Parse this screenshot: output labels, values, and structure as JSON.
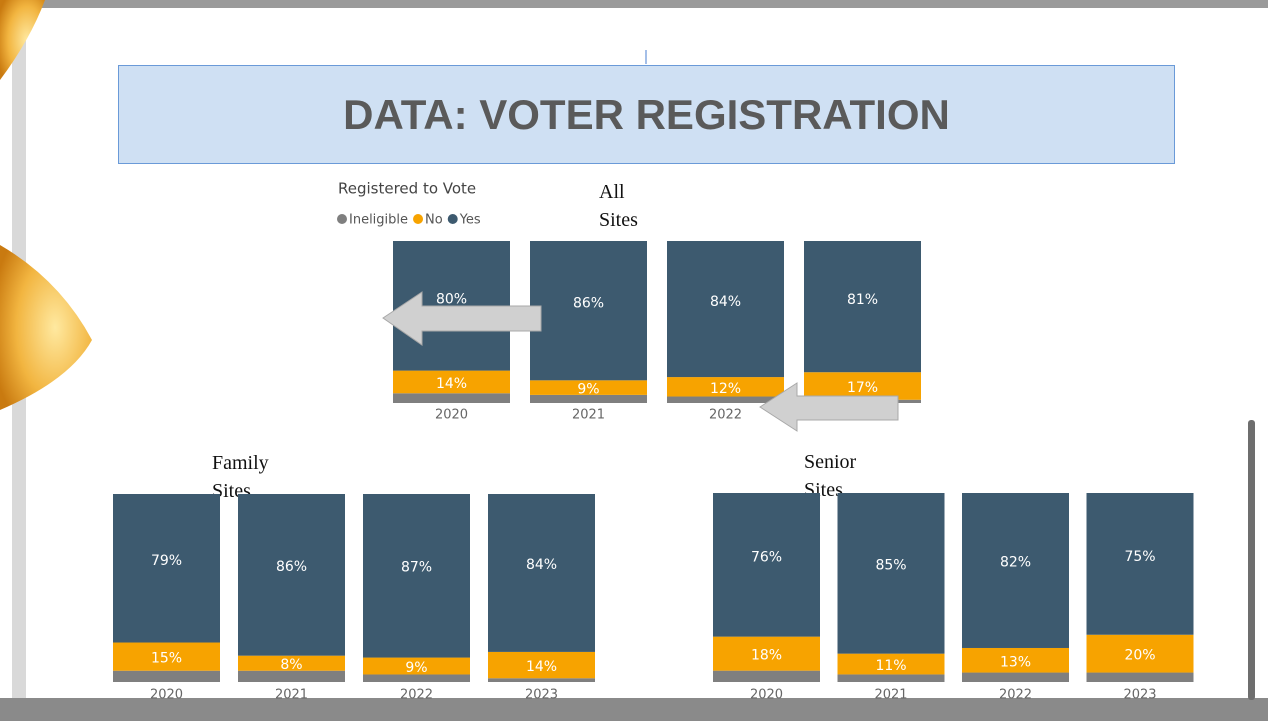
{
  "slide": {
    "title": "DATA: VOTER REGISTRATION"
  },
  "chart_data": [
    {
      "type": "stacked-bar",
      "title": "All Sites",
      "legend_title": "Registered to Vote",
      "categories": [
        "2020",
        "2021",
        "2022",
        null
      ],
      "ylim": [
        0,
        100
      ],
      "series": [
        {
          "name": "Ineligible",
          "color": "#7f7f7f",
          "values": [
            6,
            5,
            4,
            2
          ]
        },
        {
          "name": "No",
          "color": "#f7a300",
          "values": [
            14,
            9,
            12,
            17
          ],
          "value_labels": [
            "14%",
            "9%",
            "12%",
            "17%"
          ]
        },
        {
          "name": "Yes",
          "color": "#3d5a6f",
          "values": [
            80,
            86,
            84,
            81
          ],
          "value_labels": [
            "80%",
            "86%",
            "84%",
            "81%"
          ]
        }
      ]
    },
    {
      "type": "stacked-bar",
      "title": "Family Sites",
      "categories": [
        "2020",
        "2021",
        "2022",
        "2023"
      ],
      "ylim": [
        0,
        100
      ],
      "series": [
        {
          "name": "Ineligible",
          "color": "#7f7f7f",
          "values": [
            6,
            6,
            4,
            2
          ]
        },
        {
          "name": "No",
          "color": "#f7a300",
          "values": [
            15,
            8,
            9,
            14
          ],
          "value_labels": [
            "15%",
            "8%",
            "9%",
            "14%"
          ]
        },
        {
          "name": "Yes",
          "color": "#3d5a6f",
          "values": [
            79,
            86,
            87,
            84
          ],
          "value_labels": [
            "79%",
            "86%",
            "87%",
            "84%"
          ]
        }
      ]
    },
    {
      "type": "stacked-bar",
      "title": "Senior Sites",
      "categories": [
        "2020",
        "2021",
        "2022",
        "2023"
      ],
      "ylim": [
        0,
        100
      ],
      "series": [
        {
          "name": "Ineligible",
          "color": "#7f7f7f",
          "values": [
            6,
            4,
            5,
            5
          ]
        },
        {
          "name": "No",
          "color": "#f7a300",
          "values": [
            18,
            11,
            13,
            20
          ],
          "value_labels": [
            "18%",
            "11%",
            "13%",
            "20%"
          ]
        },
        {
          "name": "Yes",
          "color": "#3d5a6f",
          "values": [
            76,
            85,
            82,
            75
          ],
          "value_labels": [
            "76%",
            "85%",
            "82%",
            "75%"
          ]
        }
      ]
    }
  ]
}
